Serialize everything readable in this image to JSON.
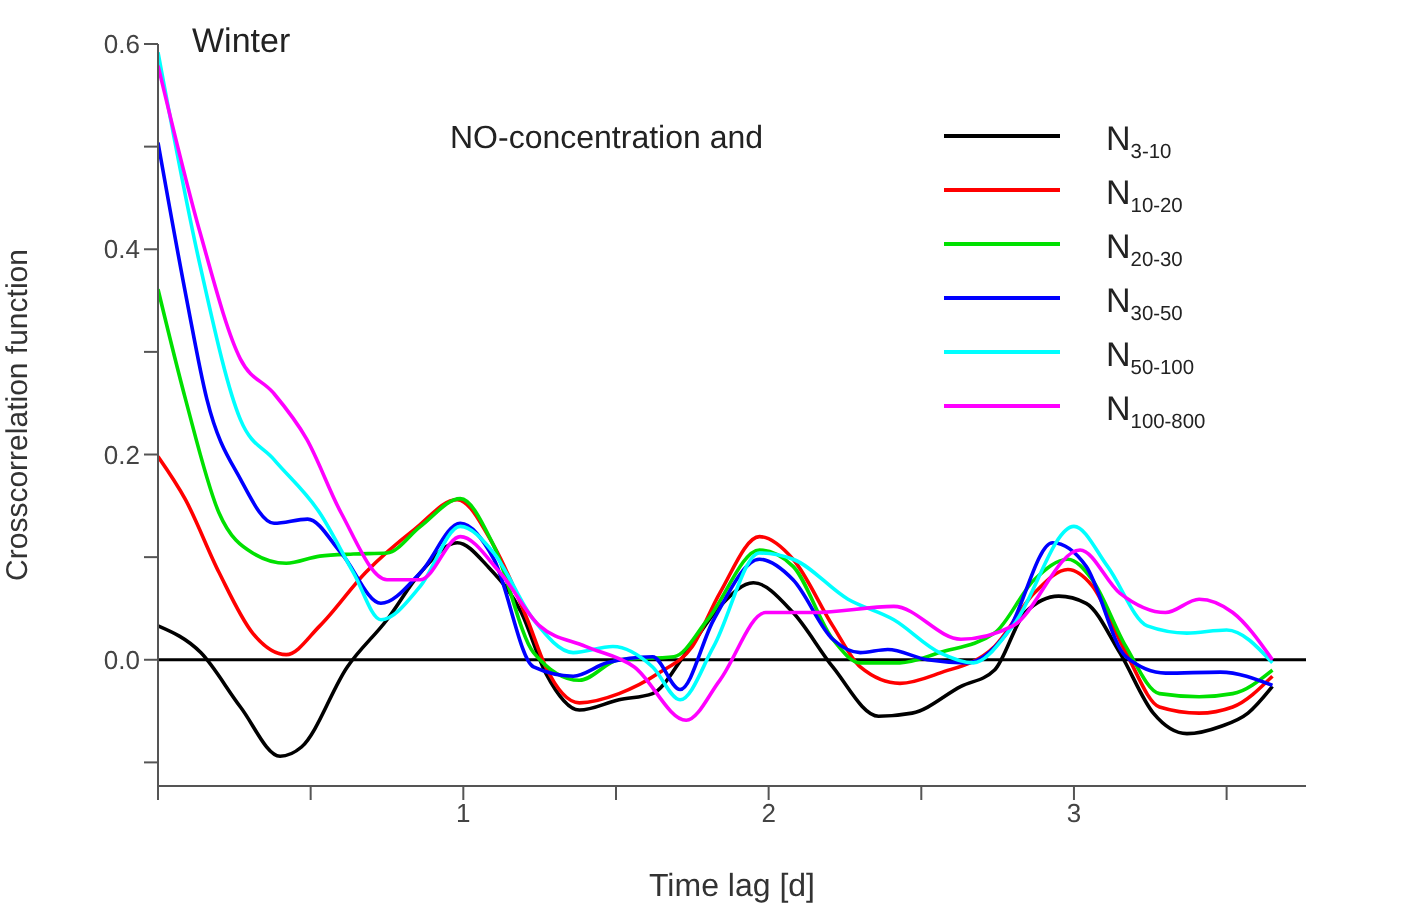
{
  "chart_data": {
    "type": "line",
    "title": "Winter",
    "xlabel": "Time lag [d]",
    "ylabel": "Crosscorrelation function",
    "legend_title": "NO-concentration and",
    "legend": "top right",
    "grid": false,
    "marker": "none",
    "line_style": "solid",
    "xlim": [
      0,
      3.76
    ],
    "ylim": [
      -0.123,
      0.6
    ],
    "xticks": [
      {
        "value": 0,
        "label": null
      },
      {
        "value": 0.5,
        "label": null
      },
      1,
      {
        "value": 1.5,
        "label": null
      },
      2,
      {
        "value": 2.5,
        "label": null
      },
      3,
      {
        "value": 3.5,
        "label": null
      }
    ],
    "yticks": [
      {
        "value": -0.1,
        "label": null
      },
      {
        "value": 0,
        "label": "0.0"
      },
      {
        "value": 0.1,
        "label": null
      },
      {
        "value": 0.2,
        "label": "0.2"
      },
      {
        "value": 0.3,
        "label": null
      },
      {
        "value": 0.4,
        "label": "0.4"
      },
      {
        "value": 0.5,
        "label": null
      },
      {
        "value": 0.6,
        "label": "0.6"
      }
    ],
    "ref_lines": [
      {
        "axis": "y",
        "value": 0,
        "color": "#000000"
      }
    ],
    "series": [
      {
        "name": "N$_{3-10}$",
        "color": "#000000",
        "x": [
          0,
          0.14,
          0.27,
          0.4,
          0.47,
          0.62,
          0.75,
          0.86,
          0.98,
          1.08,
          1.19,
          1.27,
          1.38,
          1.51,
          1.62,
          1.73,
          1.84,
          1.95,
          2.08,
          2.21,
          2.36,
          2.47,
          2.63,
          2.74,
          2.84,
          2.95,
          3.04,
          3.15,
          3.26,
          3.37,
          3.48,
          3.57,
          3.65
        ],
        "values": [
          0.033,
          0.007,
          -0.046,
          -0.094,
          -0.085,
          -0.007,
          0.039,
          0.085,
          0.114,
          0.091,
          0.046,
          -0.013,
          -0.049,
          -0.039,
          -0.033,
          0.007,
          0.052,
          0.075,
          0.046,
          -0.007,
          -0.055,
          -0.052,
          -0.026,
          -0.01,
          0.046,
          0.062,
          0.055,
          0.007,
          -0.052,
          -0.072,
          -0.065,
          -0.052,
          -0.026
        ]
      },
      {
        "name": "N$_{10-20}$",
        "color": "#ff0000",
        "x": [
          0,
          0.09,
          0.2,
          0.31,
          0.42,
          0.53,
          0.68,
          0.84,
          0.98,
          1.1,
          1.21,
          1.27,
          1.38,
          1.51,
          1.64,
          1.75,
          1.84,
          1.97,
          2.08,
          2.21,
          2.3,
          2.43,
          2.56,
          2.74,
          2.87,
          2.98,
          3.06,
          3.17,
          3.28,
          3.41,
          3.52,
          3.65
        ],
        "values": [
          0.198,
          0.156,
          0.085,
          0.026,
          0.005,
          0.033,
          0.085,
          0.127,
          0.156,
          0.111,
          0.039,
          -0.007,
          -0.042,
          -0.033,
          -0.013,
          0.013,
          0.065,
          0.12,
          0.098,
          0.033,
          -0.007,
          -0.023,
          -0.013,
          0.013,
          0.065,
          0.088,
          0.072,
          0.007,
          -0.046,
          -0.052,
          -0.046,
          -0.016
        ]
      },
      {
        "name": "N$_{20-30}$",
        "color": "#00e000",
        "x": [
          0,
          0.09,
          0.2,
          0.31,
          0.42,
          0.53,
          0.64,
          0.75,
          0.86,
          0.99,
          1.1,
          1.23,
          1.38,
          1.51,
          1.69,
          1.8,
          1.97,
          2.08,
          2.21,
          2.3,
          2.43,
          2.56,
          2.74,
          2.87,
          2.98,
          3.06,
          3.17,
          3.28,
          3.41,
          3.52,
          3.65
        ],
        "values": [
          0.361,
          0.254,
          0.143,
          0.104,
          0.094,
          0.101,
          0.103,
          0.104,
          0.13,
          0.157,
          0.111,
          0.007,
          -0.02,
          0,
          0.003,
          0.039,
          0.107,
          0.091,
          0.02,
          -0.003,
          -0.003,
          0.007,
          0.026,
          0.078,
          0.098,
          0.078,
          0.013,
          -0.033,
          -0.036,
          -0.033,
          -0.01
        ]
      },
      {
        "name": "N$_{30-50}$",
        "color": "#0000ff",
        "x": [
          0,
          0.094,
          0.16,
          0.27,
          0.38,
          0.49,
          0.6,
          0.73,
          0.86,
          0.99,
          1.1,
          1.23,
          1.36,
          1.47,
          1.62,
          1.71,
          1.82,
          1.97,
          2.08,
          2.21,
          2.3,
          2.39,
          2.52,
          2.65,
          2.78,
          2.93,
          3.04,
          3.17,
          3.3,
          3.48,
          3.65
        ],
        "values": [
          0.504,
          0.351,
          0.254,
          0.176,
          0.133,
          0.137,
          0.104,
          0.055,
          0.085,
          0.133,
          0.098,
          -0.007,
          -0.016,
          -0.003,
          0.003,
          -0.029,
          0.039,
          0.098,
          0.078,
          0.02,
          0.007,
          0.01,
          0,
          -0.003,
          0.026,
          0.114,
          0.091,
          0.003,
          -0.013,
          -0.012,
          -0.025
        ]
      },
      {
        "name": "N$_{50-100}$",
        "color": "#00ffff",
        "x": [
          0,
          0.138,
          0.27,
          0.38,
          0.53,
          0.64,
          0.73,
          0.86,
          0.99,
          1.1,
          1.23,
          1.36,
          1.49,
          1.62,
          1.71,
          1.82,
          1.97,
          2.08,
          2.26,
          2.41,
          2.56,
          2.67,
          2.8,
          3,
          3.11,
          3.24,
          3.37,
          3.5,
          3.65
        ],
        "values": [
          0.592,
          0.384,
          0.234,
          0.195,
          0.143,
          0.085,
          0.039,
          0.072,
          0.13,
          0.104,
          0.039,
          0.007,
          0.013,
          -0.007,
          -0.039,
          0.013,
          0.104,
          0.098,
          0.059,
          0.039,
          0.007,
          -0.003,
          0.033,
          0.13,
          0.091,
          0.033,
          0.026,
          0.029,
          -0.003
        ]
      },
      {
        "name": "N$_{100-800}$",
        "color": "#ff00ff",
        "x": [
          0,
          0.138,
          0.27,
          0.378,
          0.487,
          0.6,
          0.75,
          0.86,
          0.99,
          1.12,
          1.25,
          1.4,
          1.56,
          1.73,
          1.84,
          1.99,
          2.15,
          2.41,
          2.63,
          2.8,
          3.02,
          3.15,
          3.3,
          3.41,
          3.52,
          3.65
        ],
        "values": [
          0.579,
          0.416,
          0.293,
          0.26,
          0.215,
          0.143,
          0.078,
          0.078,
          0.12,
          0.085,
          0.033,
          0.013,
          -0.007,
          -0.059,
          -0.02,
          0.046,
          0.046,
          0.052,
          0.02,
          0.033,
          0.107,
          0.065,
          0.046,
          0.059,
          0.046,
          0
        ]
      }
    ]
  }
}
